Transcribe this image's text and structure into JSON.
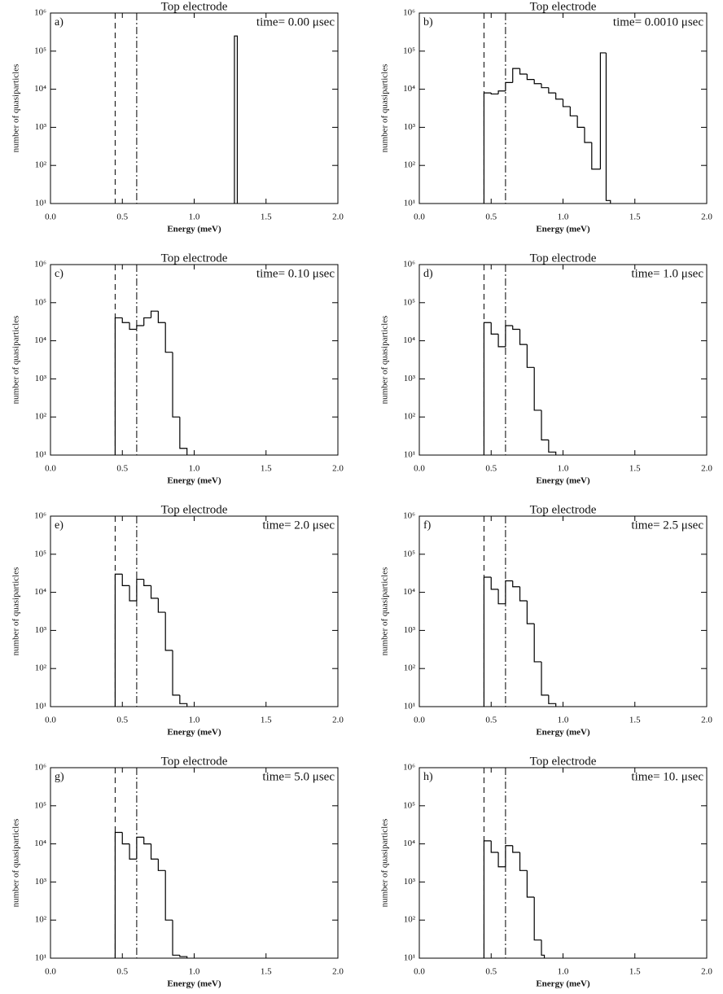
{
  "chart_data": [
    {
      "type": "histogram",
      "title": "Top electrode",
      "panel_label": "a)",
      "annotation": "time= 0.00 μsec",
      "xlabel": "Energy (meV)",
      "ylabel": "number of quasiparticles",
      "color": "#000000",
      "bins": [
        1.28,
        1.3
      ],
      "counts": [
        250000
      ],
      "xlim": [
        0,
        2
      ],
      "xticks": [
        {
          "value": 0,
          "label": "0.0"
        },
        {
          "value": 0.5,
          "label": "0.5"
        },
        {
          "value": 1,
          "label": "1.0"
        },
        {
          "value": 1.5,
          "label": "1.5"
        },
        {
          "value": 2,
          "label": "2.0"
        }
      ],
      "ylim": [
        10,
        1000000
      ],
      "ylog": true,
      "yticks": [
        {
          "value": 10,
          "label": "10¹"
        },
        {
          "value": 100,
          "label": "10²"
        },
        {
          "value": 1000,
          "label": "10³"
        },
        {
          "value": 10000,
          "label": "10⁴"
        },
        {
          "value": 100000,
          "label": "10⁵"
        },
        {
          "value": 1000000,
          "label": "10⁶"
        }
      ],
      "vlines": [
        {
          "value": 0.45,
          "style": "dashed"
        },
        {
          "value": 0.6,
          "style": "dashdot"
        }
      ]
    },
    {
      "type": "histogram",
      "title": "Top electrode",
      "panel_label": "b)",
      "annotation": "time= 0.0010 μsec",
      "xlabel": "Energy (meV)",
      "ylabel": "number of quasiparticles",
      "color": "#000000",
      "bins": [
        0.45,
        0.5,
        0.55,
        0.6,
        0.65,
        0.7,
        0.75,
        0.8,
        0.85,
        0.9,
        0.95,
        1.0,
        1.05,
        1.1,
        1.15,
        1.2,
        1.26,
        1.3,
        1.33
      ],
      "counts": [
        8000,
        7500,
        9000,
        15000,
        35000,
        25000,
        18000,
        14000,
        11000,
        8000,
        5500,
        3500,
        2000,
        1000,
        400,
        80,
        90000,
        12
      ],
      "xlim": [
        0,
        2
      ],
      "xticks": [
        {
          "value": 0,
          "label": "0.0"
        },
        {
          "value": 0.5,
          "label": "0.5"
        },
        {
          "value": 1,
          "label": "1.0"
        },
        {
          "value": 1.5,
          "label": "1.5"
        },
        {
          "value": 2,
          "label": "2.0"
        }
      ],
      "ylim": [
        10,
        1000000
      ],
      "ylog": true,
      "yticks": [
        {
          "value": 10,
          "label": "10¹"
        },
        {
          "value": 100,
          "label": "10²"
        },
        {
          "value": 1000,
          "label": "10³"
        },
        {
          "value": 10000,
          "label": "10⁴"
        },
        {
          "value": 100000,
          "label": "10⁵"
        },
        {
          "value": 1000000,
          "label": "10⁶"
        }
      ],
      "vlines": [
        {
          "value": 0.45,
          "style": "dashed"
        },
        {
          "value": 0.6,
          "style": "dashdot"
        }
      ]
    },
    {
      "type": "histogram",
      "title": "Top electrode",
      "panel_label": "c)",
      "annotation": "time= 0.10 μsec",
      "xlabel": "Energy (meV)",
      "ylabel": "number of quasiparticles",
      "color": "#000000",
      "bins": [
        0.45,
        0.5,
        0.55,
        0.6,
        0.65,
        0.7,
        0.75,
        0.8,
        0.85,
        0.9,
        0.95
      ],
      "counts": [
        40000,
        30000,
        20000,
        25000,
        40000,
        60000,
        30000,
        5000,
        100,
        15
      ],
      "xlim": [
        0,
        2
      ],
      "xticks": [
        {
          "value": 0,
          "label": "0.0"
        },
        {
          "value": 0.5,
          "label": "0.5"
        },
        {
          "value": 1,
          "label": "1.0"
        },
        {
          "value": 1.5,
          "label": "1.5"
        },
        {
          "value": 2,
          "label": "2.0"
        }
      ],
      "ylim": [
        10,
        1000000
      ],
      "ylog": true,
      "yticks": [
        {
          "value": 10,
          "label": "10¹"
        },
        {
          "value": 100,
          "label": "10²"
        },
        {
          "value": 1000,
          "label": "10³"
        },
        {
          "value": 10000,
          "label": "10⁴"
        },
        {
          "value": 100000,
          "label": "10⁵"
        },
        {
          "value": 1000000,
          "label": "10⁶"
        }
      ],
      "vlines": [
        {
          "value": 0.45,
          "style": "dashed"
        },
        {
          "value": 0.6,
          "style": "dashdot"
        }
      ]
    },
    {
      "type": "histogram",
      "title": "Top electrode",
      "panel_label": "d)",
      "annotation": "time= 1.0 μsec",
      "xlabel": "Energy (meV)",
      "ylabel": "number of quasiparticles",
      "color": "#000000",
      "bins": [
        0.45,
        0.5,
        0.55,
        0.6,
        0.65,
        0.7,
        0.75,
        0.8,
        0.85,
        0.9,
        0.95
      ],
      "counts": [
        30000,
        15000,
        7000,
        25000,
        20000,
        8000,
        2000,
        150,
        25,
        12
      ],
      "xlim": [
        0,
        2
      ],
      "xticks": [
        {
          "value": 0,
          "label": "0.0"
        },
        {
          "value": 0.5,
          "label": "0.5"
        },
        {
          "value": 1,
          "label": "1.0"
        },
        {
          "value": 1.5,
          "label": "1.5"
        },
        {
          "value": 2,
          "label": "2.0"
        }
      ],
      "ylim": [
        10,
        1000000
      ],
      "ylog": true,
      "yticks": [
        {
          "value": 10,
          "label": "10¹"
        },
        {
          "value": 100,
          "label": "10²"
        },
        {
          "value": 1000,
          "label": "10³"
        },
        {
          "value": 10000,
          "label": "10⁴"
        },
        {
          "value": 100000,
          "label": "10⁵"
        },
        {
          "value": 1000000,
          "label": "10⁶"
        }
      ],
      "vlines": [
        {
          "value": 0.45,
          "style": "dashed"
        },
        {
          "value": 0.6,
          "style": "dashdot"
        }
      ]
    },
    {
      "type": "histogram",
      "title": "Top electrode",
      "panel_label": "e)",
      "annotation": "time= 2.0 μsec",
      "xlabel": "Energy (meV)",
      "ylabel": "number of quasiparticles",
      "color": "#000000",
      "bins": [
        0.45,
        0.5,
        0.55,
        0.6,
        0.65,
        0.7,
        0.75,
        0.8,
        0.85,
        0.9,
        0.95
      ],
      "counts": [
        30000,
        15000,
        6000,
        22000,
        15000,
        7000,
        3000,
        300,
        20,
        12
      ],
      "xlim": [
        0,
        2
      ],
      "xticks": [
        {
          "value": 0,
          "label": "0.0"
        },
        {
          "value": 0.5,
          "label": "0.5"
        },
        {
          "value": 1,
          "label": "1.0"
        },
        {
          "value": 1.5,
          "label": "1.5"
        },
        {
          "value": 2,
          "label": "2.0"
        }
      ],
      "ylim": [
        10,
        1000000
      ],
      "ylog": true,
      "yticks": [
        {
          "value": 10,
          "label": "10¹"
        },
        {
          "value": 100,
          "label": "10²"
        },
        {
          "value": 1000,
          "label": "10³"
        },
        {
          "value": 10000,
          "label": "10⁴"
        },
        {
          "value": 100000,
          "label": "10⁵"
        },
        {
          "value": 1000000,
          "label": "10⁶"
        }
      ],
      "vlines": [
        {
          "value": 0.45,
          "style": "dashed"
        },
        {
          "value": 0.6,
          "style": "dashdot"
        }
      ]
    },
    {
      "type": "histogram",
      "title": "Top electrode",
      "panel_label": "f)",
      "annotation": "time= 2.5 μsec",
      "xlabel": "Energy (meV)",
      "ylabel": "number of quasiparticles",
      "color": "#000000",
      "bins": [
        0.45,
        0.5,
        0.55,
        0.6,
        0.65,
        0.7,
        0.75,
        0.8,
        0.85,
        0.9,
        0.95
      ],
      "counts": [
        25000,
        12000,
        5000,
        20000,
        14000,
        6000,
        1500,
        150,
        20,
        12
      ],
      "xlim": [
        0,
        2
      ],
      "xticks": [
        {
          "value": 0,
          "label": "0.0"
        },
        {
          "value": 0.5,
          "label": "0.5"
        },
        {
          "value": 1,
          "label": "1.0"
        },
        {
          "value": 1.5,
          "label": "1.5"
        },
        {
          "value": 2,
          "label": "2.0"
        }
      ],
      "ylim": [
        10,
        1000000
      ],
      "ylog": true,
      "yticks": [
        {
          "value": 10,
          "label": "10¹"
        },
        {
          "value": 100,
          "label": "10²"
        },
        {
          "value": 1000,
          "label": "10³"
        },
        {
          "value": 10000,
          "label": "10⁴"
        },
        {
          "value": 100000,
          "label": "10⁵"
        },
        {
          "value": 1000000,
          "label": "10⁶"
        }
      ],
      "vlines": [
        {
          "value": 0.45,
          "style": "dashed"
        },
        {
          "value": 0.6,
          "style": "dashdot"
        }
      ]
    },
    {
      "type": "histogram",
      "title": "Top electrode",
      "panel_label": "g)",
      "annotation": "time= 5.0 μsec",
      "xlabel": "Energy (meV)",
      "ylabel": "number of quasiparticles",
      "color": "#000000",
      "bins": [
        0.45,
        0.5,
        0.55,
        0.6,
        0.65,
        0.7,
        0.75,
        0.8,
        0.85,
        0.9,
        0.95
      ],
      "counts": [
        20000,
        10000,
        4000,
        15000,
        10000,
        4000,
        2000,
        100,
        12,
        11
      ],
      "xlim": [
        0,
        2
      ],
      "xticks": [
        {
          "value": 0,
          "label": "0.0"
        },
        {
          "value": 0.5,
          "label": "0.5"
        },
        {
          "value": 1,
          "label": "1.0"
        },
        {
          "value": 1.5,
          "label": "1.5"
        },
        {
          "value": 2,
          "label": "2.0"
        }
      ],
      "ylim": [
        10,
        1000000
      ],
      "ylog": true,
      "yticks": [
        {
          "value": 10,
          "label": "10¹"
        },
        {
          "value": 100,
          "label": "10²"
        },
        {
          "value": 1000,
          "label": "10³"
        },
        {
          "value": 10000,
          "label": "10⁴"
        },
        {
          "value": 100000,
          "label": "10⁵"
        },
        {
          "value": 1000000,
          "label": "10⁶"
        }
      ],
      "vlines": [
        {
          "value": 0.45,
          "style": "dashed"
        },
        {
          "value": 0.6,
          "style": "dashdot"
        }
      ]
    },
    {
      "type": "histogram",
      "title": "Top electrode",
      "panel_label": "h)",
      "annotation": "time= 10. μsec",
      "xlabel": "Energy (meV)",
      "ylabel": "number of quasiparticles",
      "color": "#000000",
      "bins": [
        0.45,
        0.5,
        0.55,
        0.6,
        0.65,
        0.7,
        0.75,
        0.8,
        0.85,
        0.87
      ],
      "counts": [
        12000,
        6000,
        2500,
        9000,
        6000,
        2000,
        400,
        30,
        12
      ],
      "xlim": [
        0,
        2
      ],
      "xticks": [
        {
          "value": 0,
          "label": "0.0"
        },
        {
          "value": 0.5,
          "label": "0.5"
        },
        {
          "value": 1,
          "label": "1.0"
        },
        {
          "value": 1.5,
          "label": "1.5"
        },
        {
          "value": 2,
          "label": "2.0"
        }
      ],
      "ylim": [
        10,
        1000000
      ],
      "ylog": true,
      "yticks": [
        {
          "value": 10,
          "label": "10¹"
        },
        {
          "value": 100,
          "label": "10²"
        },
        {
          "value": 1000,
          "label": "10³"
        },
        {
          "value": 10000,
          "label": "10⁴"
        },
        {
          "value": 100000,
          "label": "10⁵"
        },
        {
          "value": 1000000,
          "label": "10⁶"
        }
      ],
      "vlines": [
        {
          "value": 0.45,
          "style": "dashed"
        },
        {
          "value": 0.6,
          "style": "dashdot"
        }
      ]
    }
  ]
}
